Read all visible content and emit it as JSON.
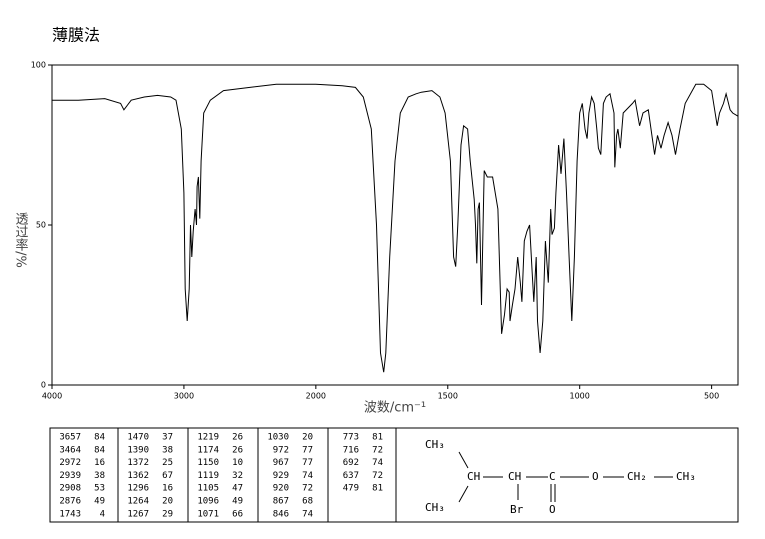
{
  "chart_data": {
    "type": "line",
    "title": "薄膜法",
    "x_label": "波数/cm⁻¹",
    "y_label": "透过率/%",
    "color": "#000000",
    "xlim": [
      4000,
      400
    ],
    "xticks": [
      4000,
      3000,
      2000,
      1500,
      1000,
      500
    ],
    "ylim": [
      0,
      100
    ],
    "yticks": [
      0,
      50,
      100
    ],
    "x": [
      4000,
      3800,
      3600,
      3480,
      3455,
      3400,
      3300,
      3200,
      3100,
      3060,
      3020,
      3000,
      2990,
      2975,
      2960,
      2950,
      2940,
      2930,
      2915,
      2905,
      2900,
      2890,
      2880,
      2870,
      2850,
      2800,
      2700,
      2500,
      2300,
      2100,
      2000,
      1900,
      1850,
      1820,
      1790,
      1770,
      1755,
      1743,
      1735,
      1720,
      1700,
      1680,
      1650,
      1620,
      1600,
      1560,
      1530,
      1510,
      1490,
      1478,
      1470,
      1462,
      1450,
      1440,
      1425,
      1415,
      1400,
      1395,
      1390,
      1385,
      1380,
      1372,
      1365,
      1362,
      1350,
      1330,
      1310,
      1296,
      1285,
      1275,
      1267,
      1264,
      1255,
      1245,
      1235,
      1225,
      1219,
      1210,
      1200,
      1190,
      1180,
      1174,
      1165,
      1160,
      1150,
      1140,
      1130,
      1119,
      1110,
      1105,
      1096,
      1090,
      1080,
      1071,
      1060,
      1050,
      1040,
      1030,
      1020,
      1010,
      1000,
      990,
      980,
      972,
      965,
      955,
      945,
      935,
      929,
      920,
      910,
      900,
      885,
      870,
      867,
      860,
      855,
      846,
      835,
      800,
      790,
      773,
      760,
      740,
      716,
      705,
      692,
      680,
      665,
      650,
      637,
      620,
      600,
      560,
      530,
      500,
      479,
      470,
      455,
      445,
      430,
      420,
      400
    ],
    "values": [
      89,
      89,
      89.5,
      88,
      86,
      89,
      90,
      90.5,
      90,
      89,
      80,
      60,
      30,
      20,
      30,
      50,
      40,
      48,
      55,
      50,
      62,
      65,
      52,
      70,
      85,
      89,
      92,
      93,
      94,
      94,
      94,
      93.5,
      93,
      90,
      80,
      50,
      10,
      4,
      10,
      40,
      70,
      85,
      90,
      91,
      91.5,
      92,
      90,
      85,
      70,
      40,
      37,
      50,
      75,
      81,
      80,
      70,
      58,
      50,
      38,
      55,
      57,
      25,
      55,
      67,
      65,
      65,
      55,
      16,
      22,
      30,
      29,
      20,
      25,
      30,
      40,
      32,
      26,
      45,
      48,
      50,
      35,
      26,
      40,
      20,
      10,
      20,
      45,
      32,
      55,
      47,
      49,
      60,
      75,
      66,
      77,
      60,
      40,
      20,
      40,
      70,
      85,
      88,
      80,
      77,
      85,
      90,
      88,
      80,
      74,
      72,
      88,
      90,
      91,
      85,
      68,
      78,
      80,
      74,
      85,
      88,
      89,
      81,
      85,
      86,
      72,
      78,
      74,
      78,
      82,
      78,
      72,
      80,
      88,
      94,
      94,
      92,
      81,
      85,
      88,
      91,
      86,
      85,
      84
    ]
  },
  "peak_table": [
    [
      [
        3657,
        84
      ],
      [
        3464,
        84
      ],
      [
        2972,
        16
      ],
      [
        2939,
        38
      ],
      [
        2908,
        53
      ],
      [
        2876,
        49
      ],
      [
        1743,
        4
      ]
    ],
    [
      [
        1470,
        37
      ],
      [
        1390,
        38
      ],
      [
        1372,
        25
      ],
      [
        1362,
        67
      ],
      [
        1296,
        16
      ],
      [
        1264,
        20
      ],
      [
        1267,
        29
      ]
    ],
    [
      [
        1219,
        26
      ],
      [
        1174,
        26
      ],
      [
        1150,
        10
      ],
      [
        1119,
        32
      ],
      [
        1105,
        47
      ],
      [
        1096,
        49
      ],
      [
        1071,
        66
      ]
    ],
    [
      [
        1030,
        20
      ],
      [
        972,
        77
      ],
      [
        967,
        77
      ],
      [
        929,
        74
      ],
      [
        920,
        72
      ],
      [
        867,
        68
      ],
      [
        846,
        74
      ]
    ],
    [
      [
        773,
        81
      ],
      [
        716,
        72
      ],
      [
        692,
        74
      ],
      [
        637,
        72
      ],
      [
        479,
        81
      ]
    ]
  ],
  "structure": {
    "groups": [
      "CH₃",
      "CH",
      "CH₃",
      "CH",
      "Br",
      "C",
      "O",
      "O",
      "CH₂",
      "CH₃"
    ]
  }
}
